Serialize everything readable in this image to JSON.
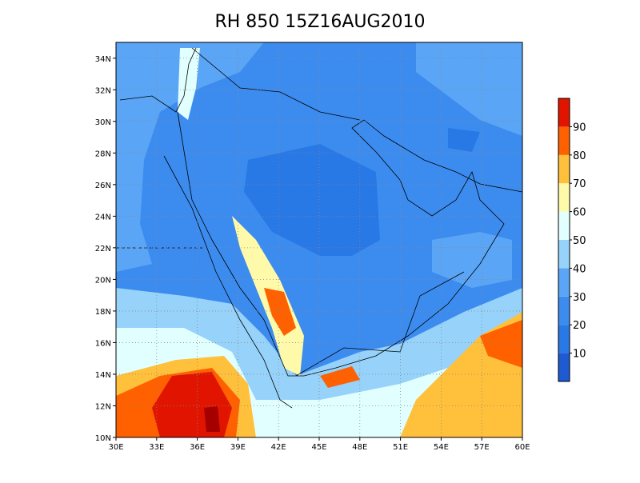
{
  "title": "RH 850 15Z16AUG2010",
  "map": {
    "xlim": [
      30,
      60
    ],
    "ylim": [
      10,
      35
    ],
    "xticks": [
      {
        "value": 30,
        "label": "30E"
      },
      {
        "value": 33,
        "label": "33E"
      },
      {
        "value": 36,
        "label": "36E"
      },
      {
        "value": 39,
        "label": "39E"
      },
      {
        "value": 42,
        "label": "42E"
      },
      {
        "value": 45,
        "label": "45E"
      },
      {
        "value": 48,
        "label": "48E"
      },
      {
        "value": 51,
        "label": "51E"
      },
      {
        "value": 54,
        "label": "54E"
      },
      {
        "value": 57,
        "label": "57E"
      },
      {
        "value": 60,
        "label": "60E"
      }
    ],
    "yticks": [
      {
        "value": 10,
        "label": "10N"
      },
      {
        "value": 12,
        "label": "12N"
      },
      {
        "value": 14,
        "label": "14N"
      },
      {
        "value": 16,
        "label": "16N"
      },
      {
        "value": 18,
        "label": "18N"
      },
      {
        "value": 20,
        "label": "20N"
      },
      {
        "value": 22,
        "label": "22N"
      },
      {
        "value": 24,
        "label": "24N"
      },
      {
        "value": 26,
        "label": "26N"
      },
      {
        "value": 28,
        "label": "28N"
      },
      {
        "value": 30,
        "label": "30N"
      },
      {
        "value": 32,
        "label": "32N"
      },
      {
        "value": 34,
        "label": "34N"
      }
    ],
    "grid": true
  },
  "colorbar": {
    "levels": [
      0,
      10,
      20,
      30,
      40,
      50,
      60,
      70,
      80,
      90,
      100
    ],
    "colors": [
      "#1e5ad2",
      "#2878e6",
      "#3c8cf0",
      "#5aa5f5",
      "#96d2fa",
      "#e1ffff",
      "#fffaaa",
      "#ffc03c",
      "#ff6000",
      "#e11400",
      "#a50000"
    ],
    "ticks": [
      10,
      20,
      30,
      40,
      50,
      60,
      70,
      80,
      90
    ]
  }
}
